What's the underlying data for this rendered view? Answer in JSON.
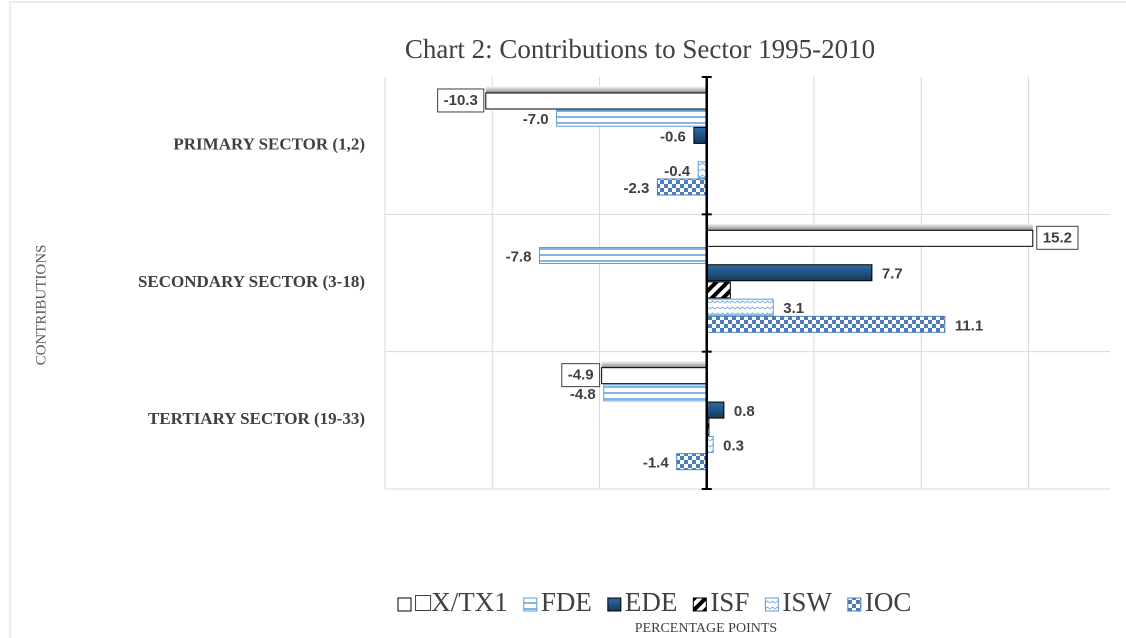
{
  "chart_data": {
    "type": "barh",
    "title": "Chart 2: Contributions to Sector 1995-2010",
    "y_label": "CONTRIBUTIONS",
    "x_label": "PERCENTAGE POINTS",
    "categories": [
      "PRIMARY SECTOR (1,2)",
      "SECONDARY SECTOR (3-18)",
      "TERTIARY SECTOR (19-33)"
    ],
    "series": [
      {
        "name": "□X/TX1",
        "color": "#ffffff",
        "pattern": "none",
        "values": [
          -10.3,
          15.2,
          -4.9
        ],
        "value_labels": [
          "-10.3",
          "15.2",
          "-4.9"
        ]
      },
      {
        "name": "FDE",
        "color": "#5b9bd5",
        "pattern": "horizontal",
        "values": [
          -7.0,
          -7.8,
          -4.8
        ],
        "value_labels": [
          "-7.0",
          "-7.8",
          "-4.8"
        ]
      },
      {
        "name": "EDE",
        "color": "#1f4e79",
        "pattern": "solid",
        "values": [
          -0.6,
          7.7,
          0.8
        ],
        "value_labels": [
          "-0.6",
          "7.7",
          "0.8"
        ]
      },
      {
        "name": "ISF",
        "color": "#000000",
        "pattern": "diagonal",
        "values": [
          0,
          1.1,
          0.1
        ]
      },
      {
        "name": "ISW",
        "color": "#5b9bd5",
        "pattern": "wave",
        "values": [
          -0.4,
          3.1,
          0.3
        ],
        "value_labels": [
          "-0.4",
          "3.1",
          "0.3"
        ]
      },
      {
        "name": "IOC",
        "color": "#4a7ebb",
        "pattern": "checker",
        "values": [
          -2.3,
          11.1,
          -1.4
        ],
        "value_labels": [
          "-2.3",
          "11.1",
          "-1.4"
        ]
      }
    ],
    "xlim": [
      -15,
      18.8
    ],
    "xticks": [
      -15,
      -10,
      -5,
      0,
      5,
      10,
      15
    ],
    "grid": true,
    "legend": "bottom"
  }
}
